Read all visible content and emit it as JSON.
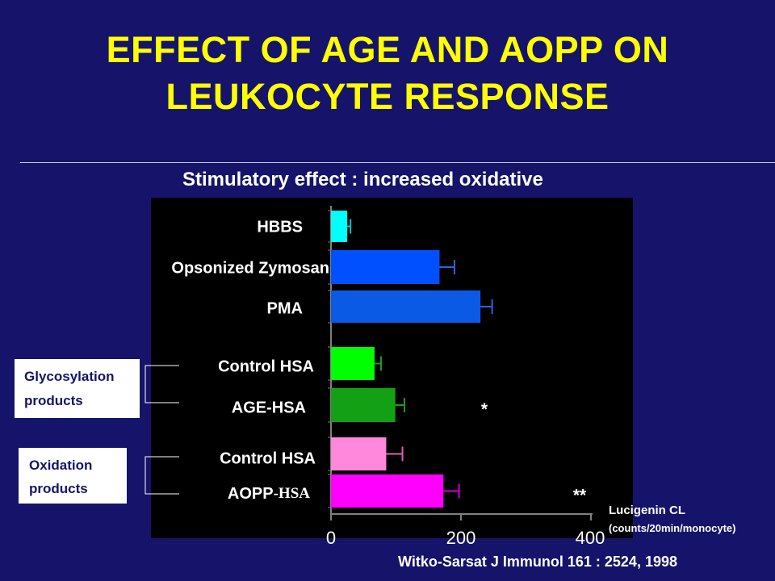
{
  "slide": {
    "title_line1": "EFFECT OF AGE AND AOPP ON",
    "title_line2": "LEUKOCYTE RESPONSE",
    "citation": "Witko-Sarsat J Immunol 161 : 2524, 1998",
    "colors": {
      "background": "#15146a",
      "title": "#ffff00",
      "text": "#ffffff",
      "plot_bg": "#000000"
    }
  },
  "groups": [
    {
      "label_line1": "Glycosylation",
      "label_line2": "products"
    },
    {
      "label_line1": "Oxidation",
      "label_line2": "products"
    }
  ],
  "chart_data": {
    "type": "bar",
    "orientation": "horizontal",
    "title": "Stimulatory effect : increased oxidative",
    "xlabel_line1": "Lucigenin CL",
    "xlabel_line2": "(counts/20min/monocyte)",
    "xlim": [
      0,
      400
    ],
    "xticks": [
      0,
      200,
      400
    ],
    "grid": false,
    "bars": [
      {
        "label": "HBBS",
        "value": 25,
        "error": 5,
        "color": "#00ffff",
        "error_color": "#00c8c8",
        "sig": ""
      },
      {
        "label": "Opsonized Zymosan",
        "value": 167,
        "error": 23,
        "color": "#0050ff",
        "error_color": "#2a64e0",
        "sig": ""
      },
      {
        "label": "PMA",
        "value": 230,
        "error": 18,
        "color": "#0a5ae6",
        "error_color": "#2a64e0",
        "sig": ""
      },
      {
        "label": "Control HSA",
        "value": 67,
        "error": 10,
        "color": "#00ff00",
        "error_color": "#18a018",
        "sig": ""
      },
      {
        "label": "AGE-HSA",
        "value": 99,
        "error": 14,
        "color": "#14a014",
        "error_color": "#18a018",
        "sig": "*"
      },
      {
        "label": "Control HSA",
        "value": 85,
        "error": 25,
        "color": "#ff88dd",
        "error_color": "#e060b0",
        "sig": ""
      },
      {
        "label": "AOPP",
        "label_suffix": "-HSA",
        "value": 173,
        "error": 24,
        "color": "#ff00ff",
        "error_color": "#d000d0",
        "sig": "**"
      }
    ]
  }
}
